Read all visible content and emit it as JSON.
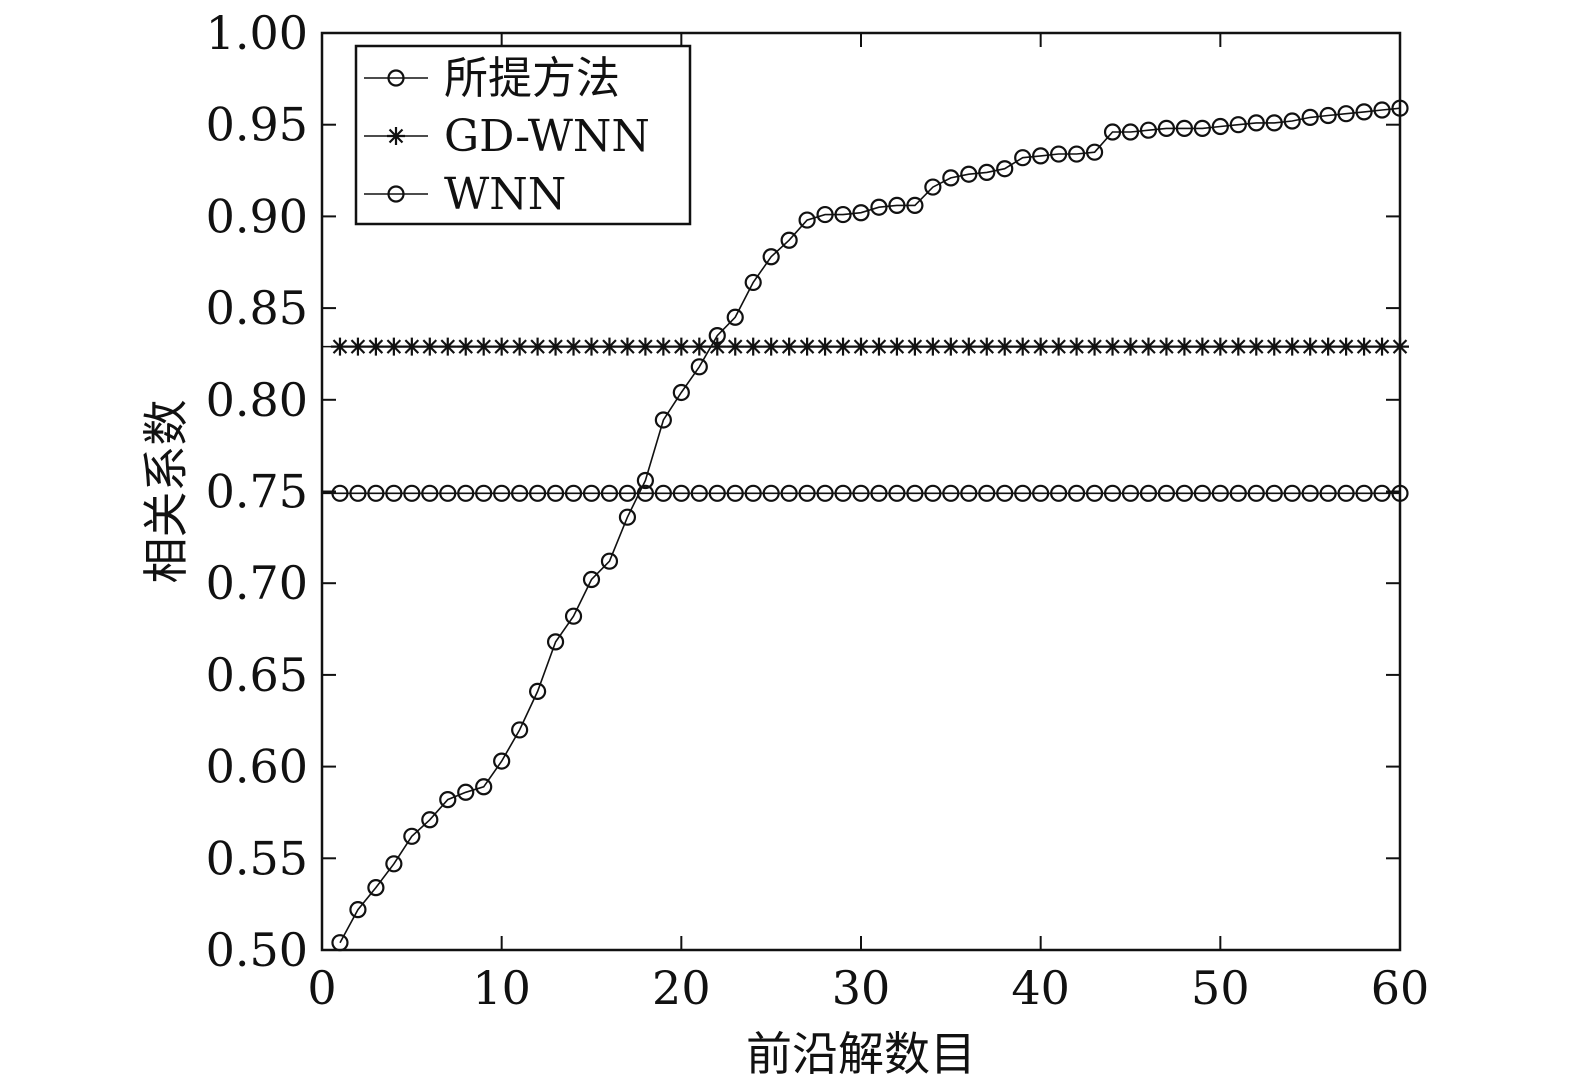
{
  "chart_data": {
    "type": "line",
    "title": "",
    "xlabel": "前沿解数目",
    "ylabel": "相关系数",
    "xlim": [
      0,
      60
    ],
    "ylim": [
      0.5,
      1.0
    ],
    "xticks": [
      "0",
      "10",
      "20",
      "30",
      "40",
      "50",
      "60"
    ],
    "yticks": [
      "0.50",
      "0.55",
      "0.60",
      "0.65",
      "0.70",
      "0.75",
      "0.80",
      "0.85",
      "0.90",
      "0.95",
      "1.00"
    ],
    "grid": false,
    "legend_position": "top-left",
    "x": [
      1,
      2,
      3,
      4,
      5,
      6,
      7,
      8,
      9,
      10,
      11,
      12,
      13,
      14,
      15,
      16,
      17,
      18,
      19,
      20,
      21,
      22,
      23,
      24,
      25,
      26,
      27,
      28,
      29,
      30,
      31,
      32,
      33,
      34,
      35,
      36,
      37,
      38,
      39,
      40,
      41,
      42,
      43,
      44,
      45,
      46,
      47,
      48,
      49,
      50,
      51,
      52,
      53,
      54,
      55,
      56,
      57,
      58,
      59,
      60
    ],
    "series": [
      {
        "name": "所提方法",
        "marker": "circle",
        "values": [
          0.504,
          0.522,
          0.534,
          0.547,
          0.562,
          0.571,
          0.582,
          0.586,
          0.589,
          0.603,
          0.62,
          0.641,
          0.668,
          0.682,
          0.702,
          0.712,
          0.736,
          0.756,
          0.789,
          0.804,
          0.818,
          0.835,
          0.845,
          0.864,
          0.878,
          0.887,
          0.898,
          0.901,
          0.901,
          0.902,
          0.905,
          0.906,
          0.906,
          0.916,
          0.921,
          0.923,
          0.924,
          0.926,
          0.932,
          0.933,
          0.934,
          0.934,
          0.935,
          0.946,
          0.946,
          0.947,
          0.948,
          0.948,
          0.948,
          0.949,
          0.95,
          0.951,
          0.951,
          0.952,
          0.954,
          0.955,
          0.956,
          0.957,
          0.958,
          0.959
        ]
      },
      {
        "name": "GD-WNN",
        "marker": "asterisk",
        "values": [
          0.829,
          0.829,
          0.829,
          0.829,
          0.829,
          0.829,
          0.829,
          0.829,
          0.829,
          0.829,
          0.829,
          0.829,
          0.829,
          0.829,
          0.829,
          0.829,
          0.829,
          0.829,
          0.829,
          0.829,
          0.829,
          0.829,
          0.829,
          0.829,
          0.829,
          0.829,
          0.829,
          0.829,
          0.829,
          0.829,
          0.829,
          0.829,
          0.829,
          0.829,
          0.829,
          0.829,
          0.829,
          0.829,
          0.829,
          0.829,
          0.829,
          0.829,
          0.829,
          0.829,
          0.829,
          0.829,
          0.829,
          0.829,
          0.829,
          0.829,
          0.829,
          0.829,
          0.829,
          0.829,
          0.829,
          0.829,
          0.829,
          0.829,
          0.829,
          0.829
        ]
      },
      {
        "name": "WNN",
        "marker": "circle",
        "values": [
          0.749,
          0.749,
          0.749,
          0.749,
          0.749,
          0.749,
          0.749,
          0.749,
          0.749,
          0.749,
          0.749,
          0.749,
          0.749,
          0.749,
          0.749,
          0.749,
          0.749,
          0.749,
          0.749,
          0.749,
          0.749,
          0.749,
          0.749,
          0.749,
          0.749,
          0.749,
          0.749,
          0.749,
          0.749,
          0.749,
          0.749,
          0.749,
          0.749,
          0.749,
          0.749,
          0.749,
          0.749,
          0.749,
          0.749,
          0.749,
          0.749,
          0.749,
          0.749,
          0.749,
          0.749,
          0.749,
          0.749,
          0.749,
          0.749,
          0.749,
          0.749,
          0.749,
          0.749,
          0.749,
          0.749,
          0.749,
          0.749,
          0.749,
          0.749,
          0.749
        ]
      }
    ]
  }
}
